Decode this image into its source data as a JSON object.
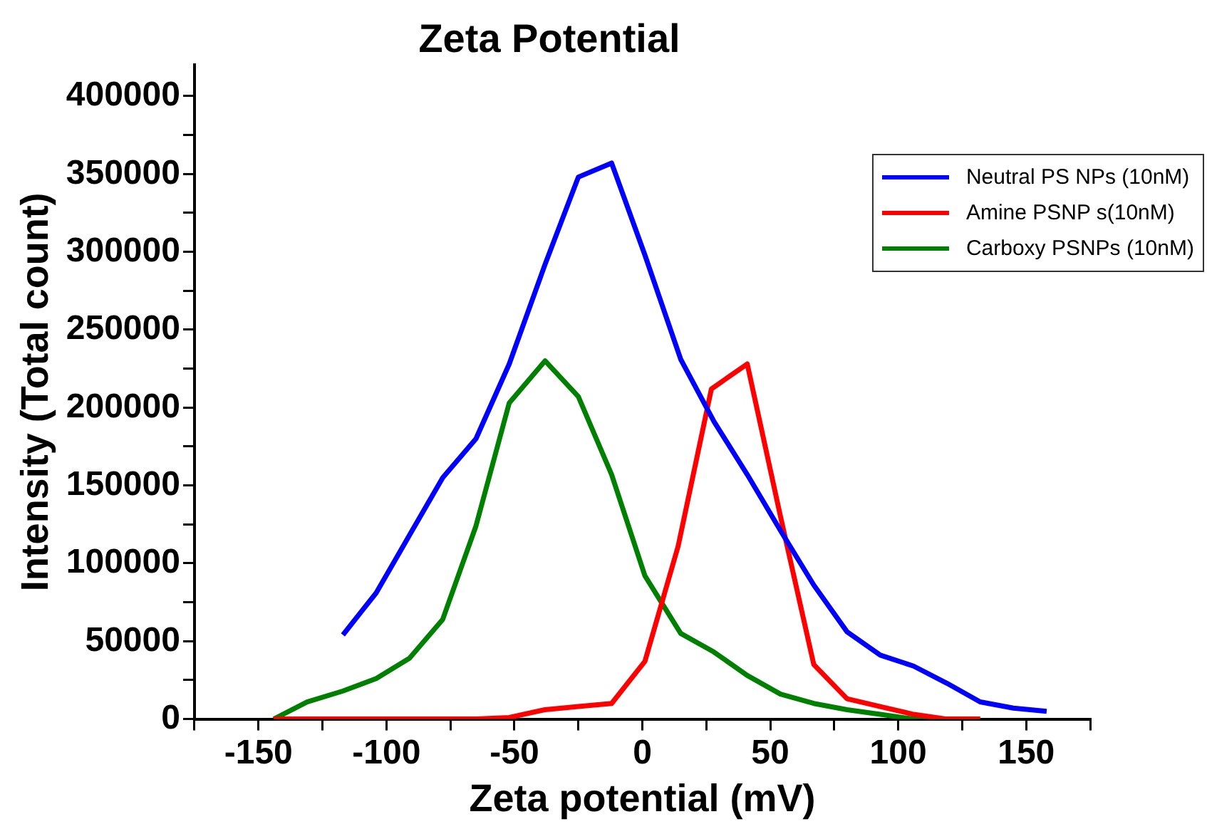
{
  "chart_data": {
    "type": "line",
    "title": "Zeta Potential",
    "xlabel": "Zeta potential (mV)",
    "ylabel": "Intensity (Total count)",
    "xlim": [
      -175,
      175
    ],
    "xticks": [
      {
        "value": -175,
        "label": null
      },
      -150,
      {
        "value": -125,
        "label": null
      },
      -100,
      {
        "value": -75,
        "label": null
      },
      -50,
      {
        "value": -25,
        "label": null
      },
      0,
      {
        "value": 25,
        "label": null
      },
      50,
      {
        "value": 75,
        "label": null
      },
      100,
      {
        "value": 125,
        "label": null
      },
      150,
      {
        "value": 175,
        "label": null
      }
    ],
    "ylim": [
      0,
      420000
    ],
    "yticks": [
      0,
      {
        "value": 25000,
        "label": null
      },
      50000,
      {
        "value": 75000,
        "label": null
      },
      100000,
      {
        "value": 125000,
        "label": null
      },
      150000,
      {
        "value": 175000,
        "label": null
      },
      200000,
      {
        "value": 225000,
        "label": null
      },
      250000,
      {
        "value": 275000,
        "label": null
      },
      300000,
      {
        "value": 325000,
        "label": null
      },
      350000,
      {
        "value": 375000,
        "label": null
      },
      400000
    ],
    "grid": false,
    "legend": "top right",
    "marker": "none",
    "line_style": "solid",
    "series": [
      {
        "name": "Neutral PS NPs (10nM)",
        "color": "#0000ff",
        "x": [
          -117,
          -104,
          -91,
          -78,
          -65,
          -52,
          -38,
          -25,
          -12,
          1,
          15,
          28,
          41,
          54,
          67,
          80,
          93,
          106,
          119,
          132,
          145,
          158
        ],
        "values": [
          54000,
          81000,
          118000,
          155000,
          180000,
          228000,
          292000,
          348000,
          357000,
          298000,
          231000,
          191000,
          157000,
          121000,
          86000,
          56000,
          41000,
          34000,
          23000,
          11000,
          7000,
          5000
        ]
      },
      {
        "name": "Amine PSNP s(10nM)",
        "color": "#ff0000",
        "x": [
          -144,
          -131,
          -117,
          -104,
          -91,
          -78,
          -65,
          -52,
          -38,
          -25,
          -12,
          1,
          14,
          27,
          41,
          54,
          67,
          80,
          93,
          106,
          119,
          132
        ],
        "values": [
          0,
          0,
          0,
          0,
          0,
          0,
          0,
          1000,
          6000,
          8000,
          10000,
          37000,
          111000,
          212000,
          228000,
          130000,
          35000,
          13000,
          8000,
          3000,
          0,
          0
        ]
      },
      {
        "name": "Carboxy PSNPs (10nM)",
        "color": "#008000",
        "x": [
          -144,
          -131,
          -117,
          -104,
          -91,
          -78,
          -65,
          -52,
          -38,
          -25,
          -12,
          1,
          15,
          28,
          41,
          54,
          67,
          80,
          93,
          106,
          119,
          132
        ],
        "values": [
          0,
          11000,
          18000,
          26000,
          39000,
          64000,
          124000,
          203000,
          230000,
          207000,
          157000,
          92000,
          55000,
          43000,
          28000,
          16000,
          10000,
          6000,
          3000,
          0,
          0,
          0
        ]
      }
    ]
  }
}
